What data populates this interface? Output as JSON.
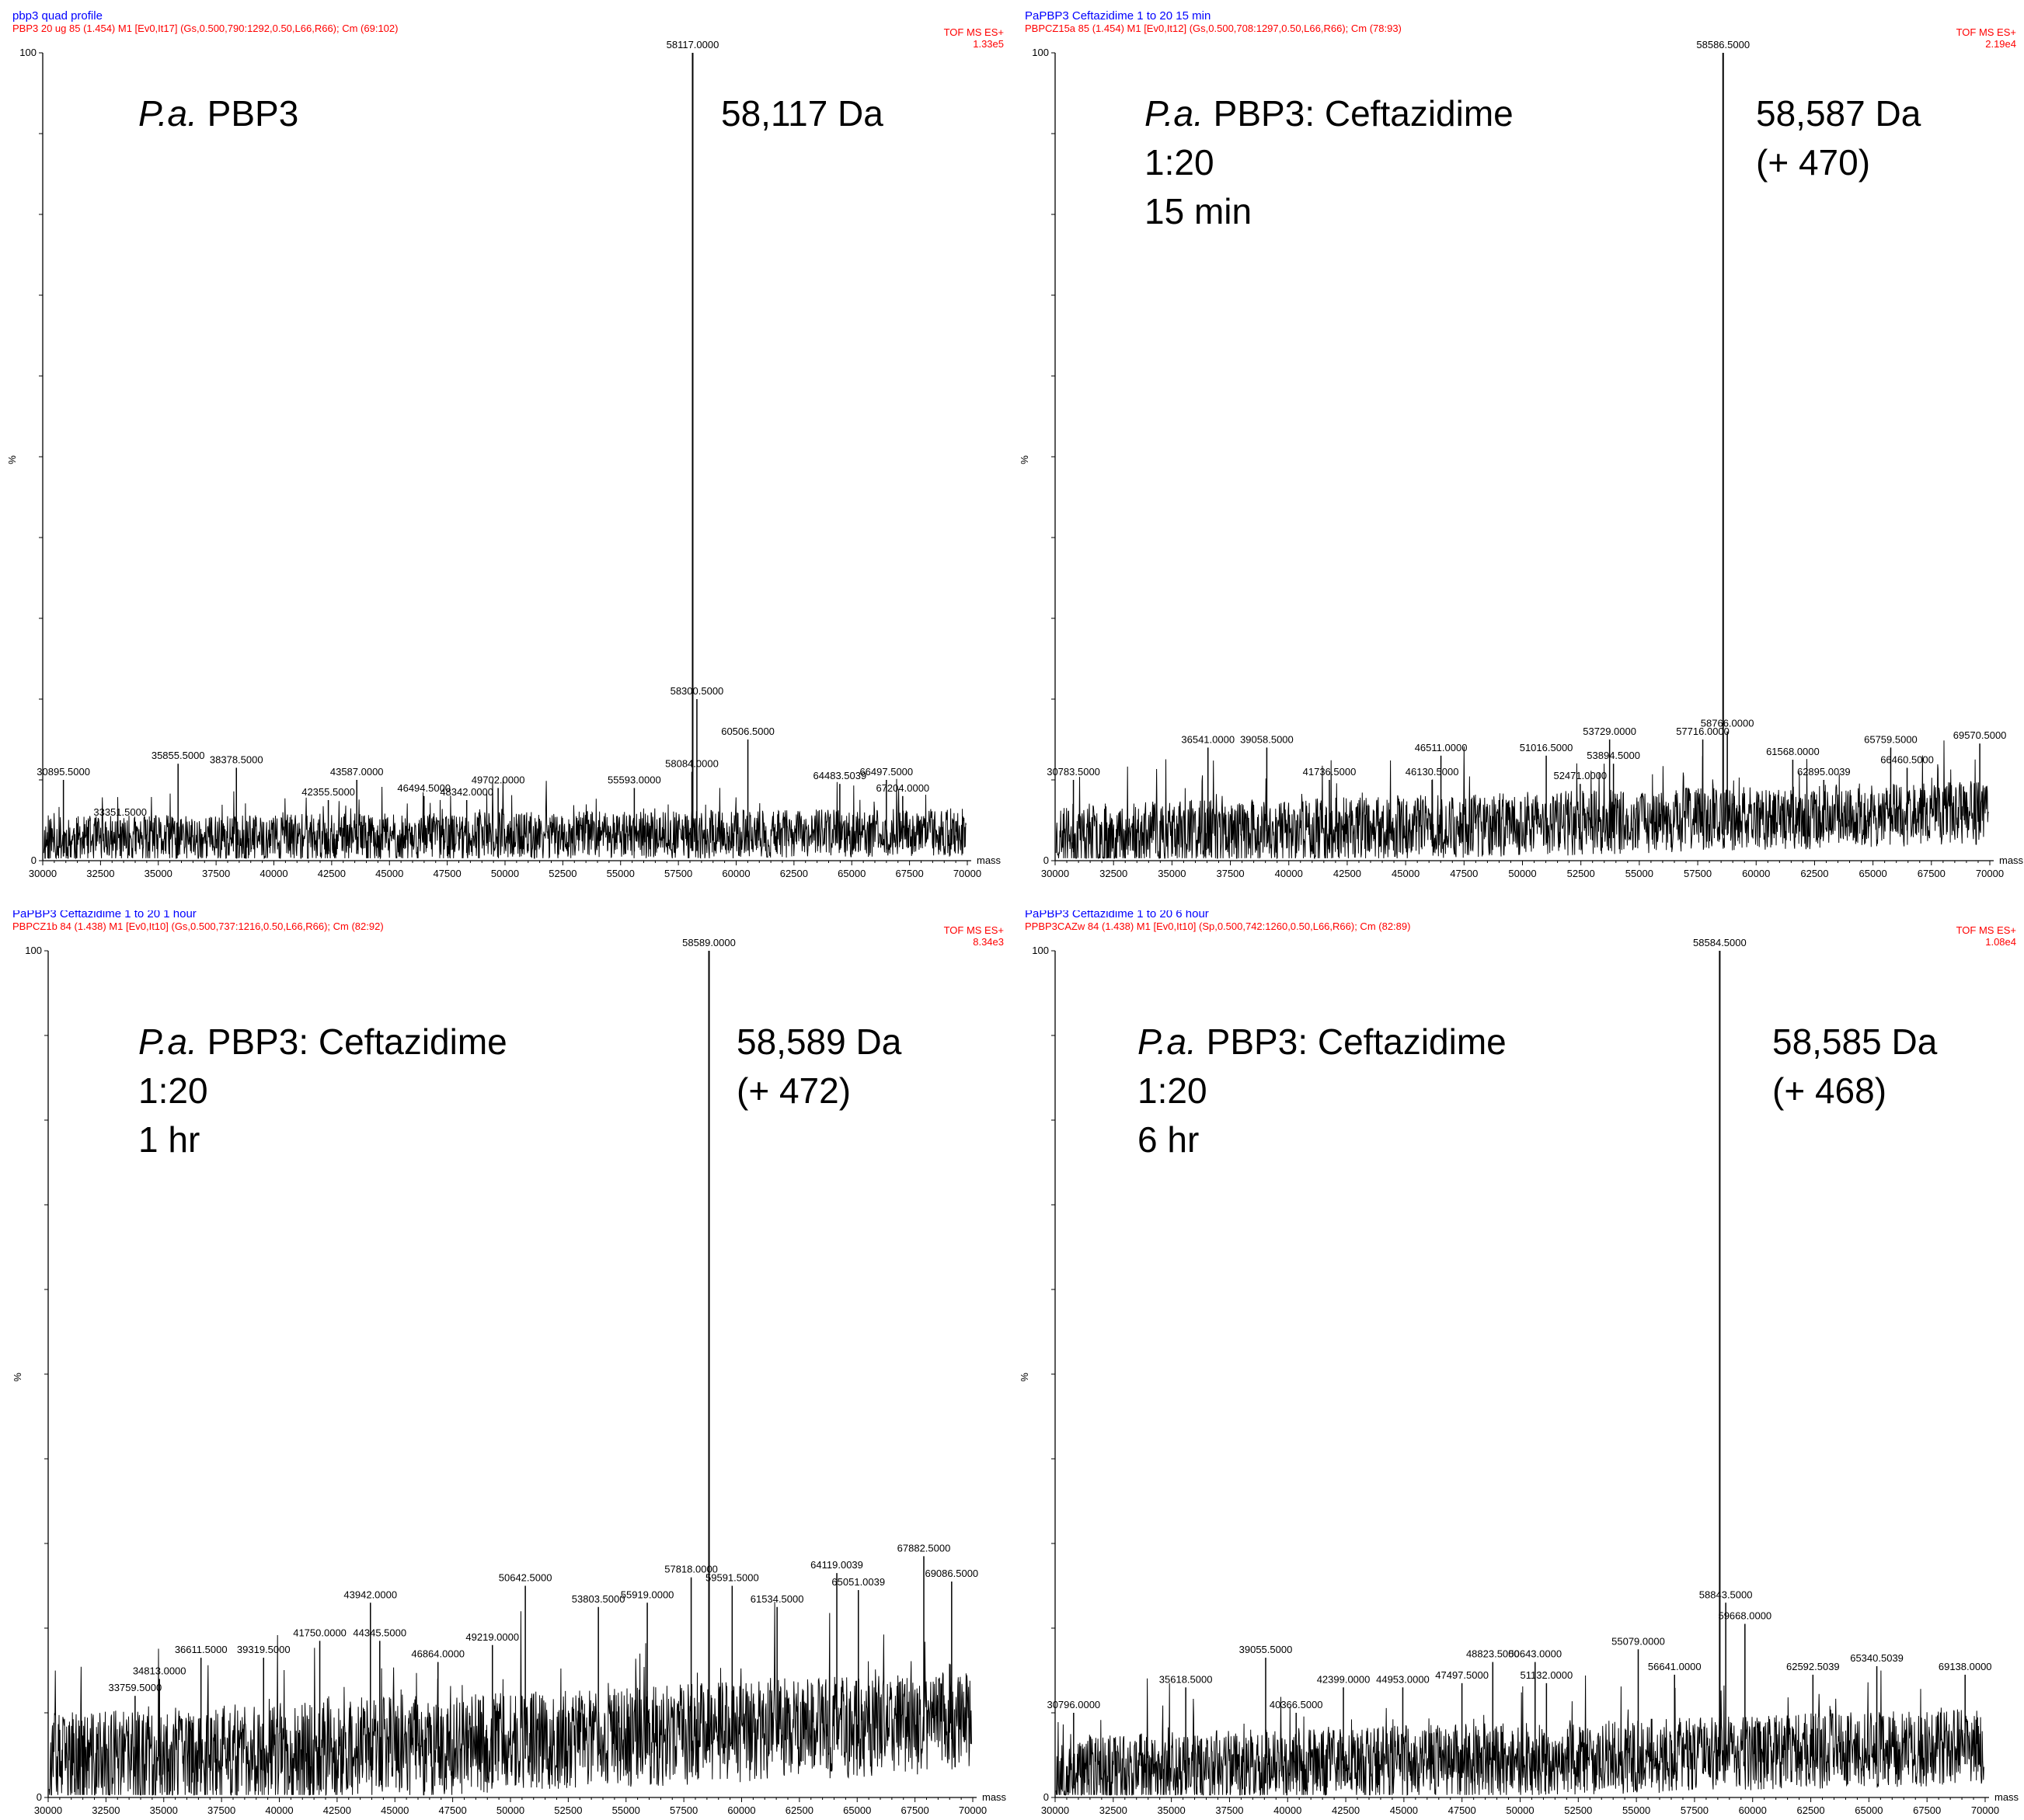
{
  "colors": {
    "title": "#0000ff",
    "subtitle": "#ff0000",
    "trace": "#000000"
  },
  "chart_data": [
    {
      "type": "line",
      "title": "pbp3 quad profile",
      "subtitle": "PBP3 20 ug  85 (1.454) M1 [Ev0,It17] (Gs,0.500,790:1292,0.50,L66,R66); Cm (69:102)",
      "mode": "TOF MS ES+",
      "intensity": "1.33e5",
      "xlabel": "mass",
      "ylabel": "%",
      "xlim": [
        30000,
        70000
      ],
      "ylim": [
        0,
        100
      ],
      "x_ticks": [
        "30000",
        "32500",
        "35000",
        "37500",
        "40000",
        "42500",
        "45000",
        "47500",
        "50000",
        "52500",
        "55000",
        "57500",
        "60000",
        "62500",
        "65000",
        "67500",
        "70000"
      ],
      "y_ticks": [
        "0",
        "100"
      ],
      "annotation": {
        "italic": "P.a.",
        "lines": [
          " PBP3"
        ],
        "mass_lines": [
          "58,117 Da"
        ]
      },
      "noise": {
        "seed": 11,
        "base_start": 2.5,
        "base_end": 3.5,
        "amp": 3.0
      },
      "peaks": [
        {
          "mass": 58117.0,
          "label": "58117.0000",
          "rel": 100
        },
        {
          "mass": 58300.5,
          "label": "58300.5000",
          "rel": 20
        },
        {
          "mass": 60506.5,
          "label": "60506.5000",
          "rel": 15
        },
        {
          "mass": 30895.5,
          "label": "30895.5000",
          "rel": 10
        },
        {
          "mass": 33351.5,
          "label": "33351.5000",
          "rel": 5
        },
        {
          "mass": 35855.5,
          "label": "35855.5000",
          "rel": 12
        },
        {
          "mass": 38378.5,
          "label": "38378.5000",
          "rel": 11.5
        },
        {
          "mass": 42355.5,
          "label": "42355.5000",
          "rel": 7.5
        },
        {
          "mass": 43587.0,
          "label": "43587.0000",
          "rel": 10
        },
        {
          "mass": 46494.5,
          "label": "46494.5000",
          "rel": 8
        },
        {
          "mass": 48342.0,
          "label": "48342.0000",
          "rel": 7.5
        },
        {
          "mass": 49702.0,
          "label": "49702.0000",
          "rel": 9
        },
        {
          "mass": 55593.0,
          "label": "55593.0000",
          "rel": 9
        },
        {
          "mass": 58084.0,
          "label": "58084.0000",
          "rel": 11
        },
        {
          "mass": 64483.5039,
          "label": "64483.5039",
          "rel": 9.5
        },
        {
          "mass": 66497.5,
          "label": "66497.5000",
          "rel": 10
        },
        {
          "mass": 67204.0,
          "label": "67204.0000",
          "rel": 8
        }
      ]
    },
    {
      "type": "line",
      "title": "PaPBP3  Ceftazidime 1 to 20 15 min",
      "subtitle": "PBPCZ15a  85 (1.454) M1 [Ev0,It12] (Gs,0.500,708:1297,0.50,L66,R66); Cm (78:93)",
      "mode": "TOF MS ES+",
      "intensity": "2.19e4",
      "xlabel": "mass",
      "ylabel": "%",
      "xlim": [
        30000,
        70000
      ],
      "ylim": [
        0,
        100
      ],
      "x_ticks": [
        "30000",
        "32500",
        "35000",
        "37500",
        "40000",
        "42500",
        "45000",
        "47500",
        "50000",
        "52500",
        "55000",
        "57500",
        "60000",
        "62500",
        "65000",
        "67500",
        "70000"
      ],
      "y_ticks": [
        "0",
        "100"
      ],
      "annotation": {
        "italic": "P.a.",
        "lines": [
          " PBP3: Ceftazidime",
          "1:20",
          "15 min"
        ],
        "mass_lines": [
          "58,587 Da",
          "(+ 470)"
        ]
      },
      "noise": {
        "seed": 23,
        "base_start": 3,
        "base_end": 6,
        "amp": 4.0
      },
      "peaks": [
        {
          "mass": 58586.5,
          "label": "58586.5000",
          "rel": 100
        },
        {
          "mass": 30783.5,
          "label": "30783.5000",
          "rel": 10
        },
        {
          "mass": 36541.0,
          "label": "36541.0000",
          "rel": 14
        },
        {
          "mass": 39058.5,
          "label": "39058.5000",
          "rel": 14
        },
        {
          "mass": 41736.5,
          "label": "41736.5000",
          "rel": 10
        },
        {
          "mass": 46130.5,
          "label": "46130.5000",
          "rel": 10
        },
        {
          "mass": 46511.0,
          "label": "46511.0000",
          "rel": 13
        },
        {
          "mass": 51016.5,
          "label": "51016.5000",
          "rel": 13
        },
        {
          "mass": 52471.0,
          "label": "52471.0000",
          "rel": 9.5
        },
        {
          "mass": 53729.0,
          "label": "53729.0000",
          "rel": 15
        },
        {
          "mass": 53894.5,
          "label": "53894.5000",
          "rel": 12
        },
        {
          "mass": 57716.0,
          "label": "57716.0000",
          "rel": 15
        },
        {
          "mass": 58766.0,
          "label": "58766.0000",
          "rel": 16
        },
        {
          "mass": 61568.0,
          "label": "61568.0000",
          "rel": 12.5
        },
        {
          "mass": 62895.0039,
          "label": "62895.0039",
          "rel": 10
        },
        {
          "mass": 65759.5,
          "label": "65759.5000",
          "rel": 14
        },
        {
          "mass": 66460.5,
          "label": "66460.5000",
          "rel": 11.5
        },
        {
          "mass": 69570.5,
          "label": "69570.5000",
          "rel": 14.5
        }
      ]
    },
    {
      "type": "line",
      "title": "PaPBP3  Ceftazidime 1 to 20 1 hour",
      "subtitle": "PBPCZ1b  84 (1.438) M1 [Ev0,It10] (Gs,0.500,737:1216,0.50,L66,R66); Cm (82:92)",
      "mode": "TOF MS ES+",
      "intensity": "8.34e3",
      "xlabel": "mass",
      "ylabel": "%",
      "xlim": [
        30000,
        70000
      ],
      "ylim": [
        0,
        100
      ],
      "x_ticks": [
        "30000",
        "32500",
        "35000",
        "37500",
        "40000",
        "42500",
        "45000",
        "47500",
        "50000",
        "52500",
        "55000",
        "57500",
        "60000",
        "62500",
        "65000",
        "67500",
        "70000"
      ],
      "y_ticks": [
        "0",
        "100"
      ],
      "annotation": {
        "italic": "P.a.",
        "lines": [
          " PBP3: Ceftazidime",
          "1:20",
          "1 hr"
        ],
        "mass_lines": [
          "58,589 Da",
          "(+ 472)"
        ]
      },
      "noise": {
        "seed": 37,
        "base_start": 4,
        "base_end": 9,
        "amp": 6.0
      },
      "peaks": [
        {
          "mass": 58589.0,
          "label": "58589.0000",
          "rel": 100
        },
        {
          "mass": 33759.5,
          "label": "33759.5000",
          "rel": 12
        },
        {
          "mass": 34813.0,
          "label": "34813.0000",
          "rel": 14
        },
        {
          "mass": 36611.5,
          "label": "36611.5000",
          "rel": 16.5
        },
        {
          "mass": 39319.5,
          "label": "39319.5000",
          "rel": 16.5
        },
        {
          "mass": 41750.0,
          "label": "41750.0000",
          "rel": 18.5
        },
        {
          "mass": 43942.0,
          "label": "43942.0000",
          "rel": 23
        },
        {
          "mass": 44345.5,
          "label": "44345.5000",
          "rel": 18.5
        },
        {
          "mass": 46864.0,
          "label": "46864.0000",
          "rel": 16
        },
        {
          "mass": 49219.0,
          "label": "49219.0000",
          "rel": 18
        },
        {
          "mass": 50642.5,
          "label": "50642.5000",
          "rel": 25
        },
        {
          "mass": 53803.5,
          "label": "53803.5000",
          "rel": 22.5
        },
        {
          "mass": 55919.0,
          "label": "55919.0000",
          "rel": 23
        },
        {
          "mass": 57818.0,
          "label": "57818.0000",
          "rel": 26
        },
        {
          "mass": 59591.5,
          "label": "59591.5000",
          "rel": 25
        },
        {
          "mass": 61534.5,
          "label": "61534.5000",
          "rel": 22.5
        },
        {
          "mass": 64119.0039,
          "label": "64119.0039",
          "rel": 26.5
        },
        {
          "mass": 65051.0039,
          "label": "65051.0039",
          "rel": 24.5
        },
        {
          "mass": 67882.5,
          "label": "67882.5000",
          "rel": 28.5
        },
        {
          "mass": 69086.5,
          "label": "69086.5000",
          "rel": 25.5
        }
      ]
    },
    {
      "type": "line",
      "title": "PaPBP3 Ceftazidime 1 to 20 6 hour",
      "subtitle": "PPBP3CAZw  84 (1.438) M1 [Ev0,It10] (Sp,0.500,742:1260,0.50,L66,R66); Cm (82:89)",
      "mode": "TOF MS ES+",
      "intensity": "1.08e4",
      "xlabel": "mass",
      "ylabel": "%",
      "xlim": [
        30000,
        70000
      ],
      "ylim": [
        0,
        100
      ],
      "x_ticks": [
        "30000",
        "32500",
        "35000",
        "37500",
        "40000",
        "42500",
        "45000",
        "47500",
        "50000",
        "52500",
        "55000",
        "57500",
        "60000",
        "62500",
        "65000",
        "67500",
        "70000"
      ],
      "y_ticks": [
        "0",
        "100"
      ],
      "annotation": {
        "italic": "P.a.",
        "lines": [
          " PBP3: Ceftazidime",
          "1:20",
          "6 hr"
        ],
        "mass_lines": [
          "58,585 Da",
          "(+ 468)"
        ]
      },
      "noise": {
        "seed": 53,
        "base_start": 3,
        "base_end": 6,
        "amp": 4.5
      },
      "peaks": [
        {
          "mass": 58584.5,
          "label": "58584.5000",
          "rel": 100
        },
        {
          "mass": 58843.5,
          "label": "58843.5000",
          "rel": 23
        },
        {
          "mass": 59668.0,
          "label": "59668.0000",
          "rel": 20.5
        },
        {
          "mass": 30796.0,
          "label": "30796.0000",
          "rel": 10
        },
        {
          "mass": 35618.5,
          "label": "35618.5000",
          "rel": 13
        },
        {
          "mass": 39055.5,
          "label": "39055.5000",
          "rel": 16.5
        },
        {
          "mass": 40366.5,
          "label": "40366.5000",
          "rel": 10
        },
        {
          "mass": 42399.0,
          "label": "42399.0000",
          "rel": 13
        },
        {
          "mass": 44953.0,
          "label": "44953.0000",
          "rel": 13
        },
        {
          "mass": 47497.5,
          "label": "47497.5000",
          "rel": 13.5
        },
        {
          "mass": 48823.5,
          "label": "48823.5000",
          "rel": 16
        },
        {
          "mass": 50643.0,
          "label": "50643.0000",
          "rel": 16
        },
        {
          "mass": 51132.0,
          "label": "51132.0000",
          "rel": 13.5
        },
        {
          "mass": 55079.0,
          "label": "55079.0000",
          "rel": 17.5
        },
        {
          "mass": 56641.0,
          "label": "56641.0000",
          "rel": 14.5
        },
        {
          "mass": 62592.5039,
          "label": "62592.5039",
          "rel": 14.5
        },
        {
          "mass": 65340.5039,
          "label": "65340.5039",
          "rel": 15.5
        },
        {
          "mass": 69138.0,
          "label": "69138.0000",
          "rel": 14.5
        }
      ]
    }
  ]
}
